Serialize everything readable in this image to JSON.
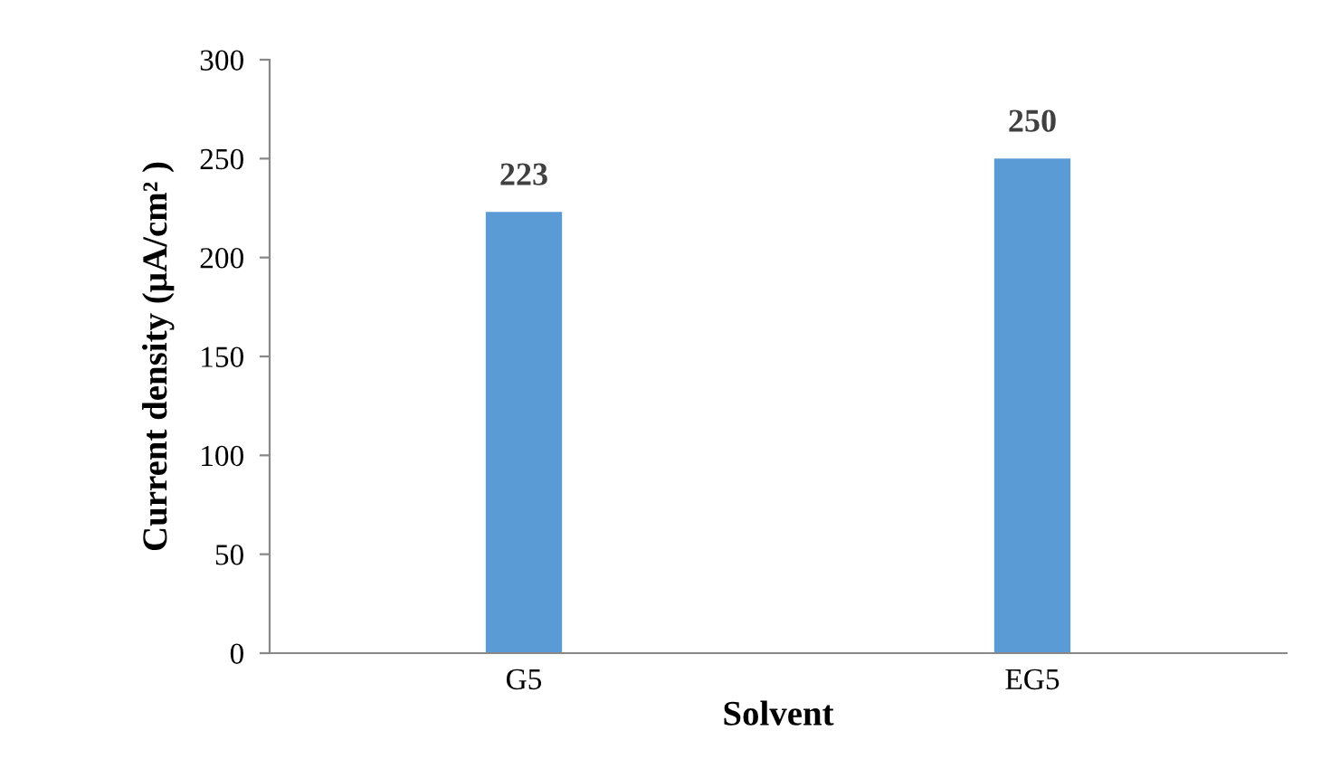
{
  "chart_data": {
    "type": "bar",
    "xlabel": "Solvent",
    "ylabel": "Current density (µA/cm² )",
    "categories": [
      "G5",
      "EG5"
    ],
    "series": [
      {
        "color": "#5b9bd5",
        "values": [
          223,
          250
        ]
      }
    ],
    "ylim": [
      0,
      300
    ],
    "yticks": [
      0,
      50,
      100,
      150,
      200,
      250,
      300
    ],
    "data_labels": true,
    "grid": false,
    "legend": false
  }
}
